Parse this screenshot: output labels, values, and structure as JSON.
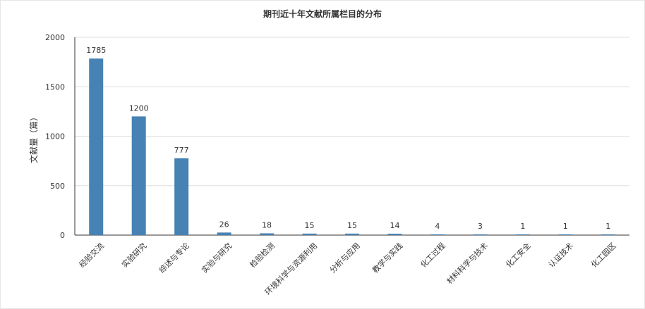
{
  "chart_data": {
    "type": "bar",
    "title": "期刊近十年文献所属栏目的分布",
    "ylabel": "文献量（篇）",
    "xlabel": "",
    "categories": [
      "经验交流",
      "实验研究",
      "综述与专论",
      "实验与研究",
      "检验检测",
      "环境科学与资源利用",
      "分析与应用",
      "教学与实践",
      "化工过程",
      "材料科学与技术",
      "化工安全",
      "认证技术",
      "化工园区"
    ],
    "values": [
      1785,
      1200,
      777,
      26,
      18,
      15,
      15,
      14,
      4,
      3,
      1,
      1,
      1
    ],
    "ylim": [
      0,
      2000
    ],
    "yticks": [
      0,
      500,
      1000,
      1500,
      2000
    ],
    "grid": true,
    "legend": "none",
    "bar_color": "#4682b4"
  }
}
